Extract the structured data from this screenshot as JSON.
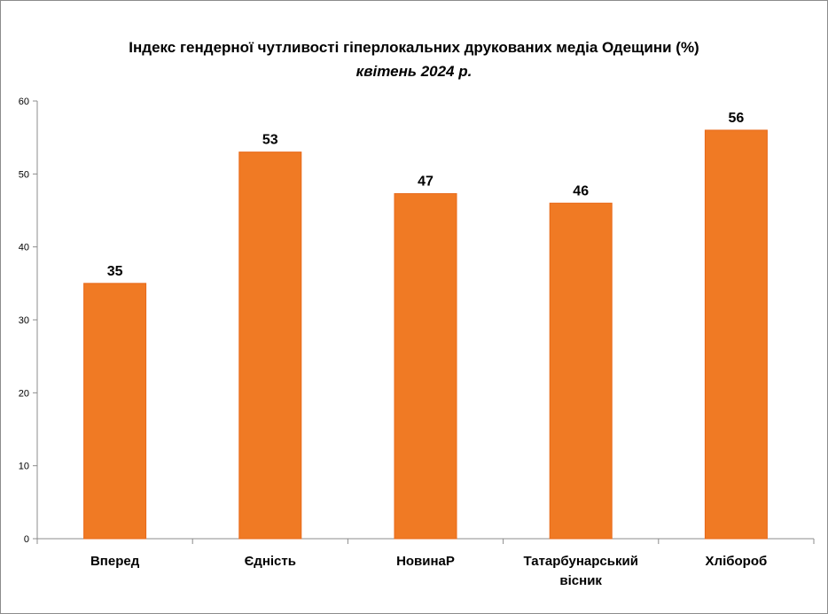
{
  "chart_data": {
    "type": "bar",
    "title": "Індекс гендерної чутливості гіперлокальних друкованих медіа Одещини (%)",
    "subtitle": "квітень 2024 р.",
    "categories": [
      [
        "Вперед"
      ],
      [
        "Єдність"
      ],
      [
        "НовинаР"
      ],
      [
        "Татарбунарський",
        "вісник"
      ],
      [
        "Хлібороб"
      ]
    ],
    "values": [
      35,
      53,
      47,
      46,
      56
    ],
    "value_labels": [
      "35",
      "53",
      "47",
      "46",
      "56"
    ],
    "plot_values": [
      35,
      53,
      47.3,
      46,
      56
    ],
    "ylim": [
      0,
      60
    ],
    "yticks": [
      "0",
      "10",
      "20",
      "30",
      "40",
      "50",
      "60"
    ],
    "xlabel": "",
    "ylabel": "",
    "bar_color": "#F07A24",
    "bar_edge_color": "#E8691A",
    "grid": false,
    "legend": false
  }
}
